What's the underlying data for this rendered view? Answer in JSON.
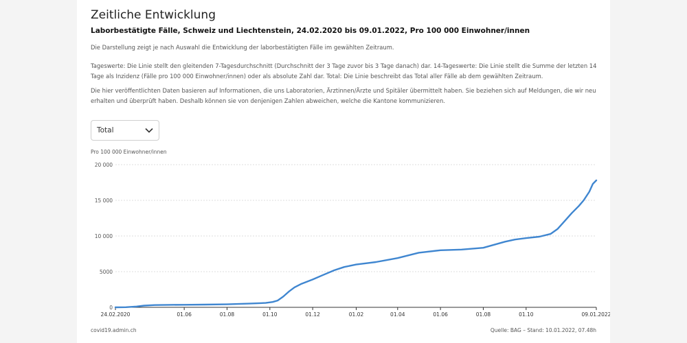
{
  "header": {
    "title": "Zeitliche Entwicklung",
    "subtitle": "Laborbestätigte Fälle, Schweiz und Liechtenstein, 24.02.2020 bis 09.01.2022, Pro 100 000 Einwohner/innen"
  },
  "description": [
    "Die Darstellung zeigt je nach Auswahl die Entwicklung der laborbestätigten Fälle im gewählten Zeitraum.",
    "Tageswerte: Die Linie stellt den gleitenden 7-Tagesdurchschnitt (Durchschnitt der 3 Tage zuvor bis 3 Tage danach) dar. 14-Tageswerte: Die Linie stellt die Summe der letzten 14 Tage als Inzidenz (Fälle pro 100 000 Einwohner/innen) oder als absolute Zahl dar. Total: Die Linie beschreibt das Total aller Fälle ab dem gewählten Zeitraum.",
    "Die hier veröffentlichten Daten basieren auf Informationen, die uns Laboratorien, Ärztinnen/Ärzte und Spitäler übermittelt haben. Sie beziehen sich auf Meldungen, die wir neu erhalten und überprüft haben. Deshalb können sie von denjenigen Zahlen abweichen, welche die Kantone kommunizieren."
  ],
  "selector": {
    "selected": "Total",
    "icon": "chevron-down-icon"
  },
  "footer": {
    "left": "covid19.admin.ch",
    "right": "Quelle: BAG – Stand: 10.01.2022, 07.48h"
  },
  "colors": {
    "line": "#3f86d0",
    "grid": "#dcdcdc",
    "axis": "#333333"
  },
  "chart_data": {
    "type": "line",
    "title": "",
    "ylabel": "Pro 100 000 Einwohner/innen",
    "xlabel": "",
    "ylim": [
      0,
      20000
    ],
    "xlim": [
      "2020-02-24",
      "2022-01-09"
    ],
    "grid": true,
    "y_ticks": [
      {
        "value": 0,
        "label": "0"
      },
      {
        "value": 5000,
        "label": "5000"
      },
      {
        "value": 10000,
        "label": "10 000"
      },
      {
        "value": 15000,
        "label": "15 000"
      },
      {
        "value": 20000,
        "label": "20 000"
      }
    ],
    "x_ticks": [
      {
        "value": "2020-02-24",
        "label": "24.02.2020"
      },
      {
        "value": "2020-06-01",
        "label": "01.06"
      },
      {
        "value": "2020-08-01",
        "label": "01.08"
      },
      {
        "value": "2020-10-01",
        "label": "01.10"
      },
      {
        "value": "2020-12-01",
        "label": "01.12"
      },
      {
        "value": "2021-02-01",
        "label": "01.02"
      },
      {
        "value": "2021-04-01",
        "label": "01.04"
      },
      {
        "value": "2021-06-01",
        "label": "01.06"
      },
      {
        "value": "2021-08-01",
        "label": "01.08"
      },
      {
        "value": "2021-10-01",
        "label": "01.10"
      },
      {
        "value": "2022-01-09",
        "label": "09.01.2022"
      }
    ],
    "series": [
      {
        "values": [
          {
            "x": "2020-02-24",
            "y": 0
          },
          {
            "x": "2020-03-10",
            "y": 20
          },
          {
            "x": "2020-03-25",
            "y": 120
          },
          {
            "x": "2020-04-05",
            "y": 240
          },
          {
            "x": "2020-04-20",
            "y": 320
          },
          {
            "x": "2020-05-10",
            "y": 350
          },
          {
            "x": "2020-06-01",
            "y": 360
          },
          {
            "x": "2020-07-01",
            "y": 380
          },
          {
            "x": "2020-08-01",
            "y": 420
          },
          {
            "x": "2020-09-01",
            "y": 520
          },
          {
            "x": "2020-09-25",
            "y": 620
          },
          {
            "x": "2020-10-05",
            "y": 750
          },
          {
            "x": "2020-10-12",
            "y": 950
          },
          {
            "x": "2020-10-20",
            "y": 1500
          },
          {
            "x": "2020-10-28",
            "y": 2200
          },
          {
            "x": "2020-11-05",
            "y": 2800
          },
          {
            "x": "2020-11-15",
            "y": 3300
          },
          {
            "x": "2020-12-01",
            "y": 3900
          },
          {
            "x": "2020-12-15",
            "y": 4500
          },
          {
            "x": "2021-01-01",
            "y": 5200
          },
          {
            "x": "2021-01-15",
            "y": 5650
          },
          {
            "x": "2021-02-01",
            "y": 6000
          },
          {
            "x": "2021-03-01",
            "y": 6350
          },
          {
            "x": "2021-04-01",
            "y": 6900
          },
          {
            "x": "2021-05-01",
            "y": 7650
          },
          {
            "x": "2021-06-01",
            "y": 8000
          },
          {
            "x": "2021-07-01",
            "y": 8100
          },
          {
            "x": "2021-08-01",
            "y": 8350
          },
          {
            "x": "2021-09-01",
            "y": 9200
          },
          {
            "x": "2021-09-15",
            "y": 9500
          },
          {
            "x": "2021-10-01",
            "y": 9700
          },
          {
            "x": "2021-10-20",
            "y": 9900
          },
          {
            "x": "2021-11-05",
            "y": 10300
          },
          {
            "x": "2021-11-15",
            "y": 11000
          },
          {
            "x": "2021-11-25",
            "y": 12100
          },
          {
            "x": "2021-12-05",
            "y": 13200
          },
          {
            "x": "2021-12-15",
            "y": 14200
          },
          {
            "x": "2021-12-22",
            "y": 15000
          },
          {
            "x": "2021-12-30",
            "y": 16200
          },
          {
            "x": "2022-01-04",
            "y": 17300
          },
          {
            "x": "2022-01-09",
            "y": 17800
          }
        ]
      }
    ]
  }
}
